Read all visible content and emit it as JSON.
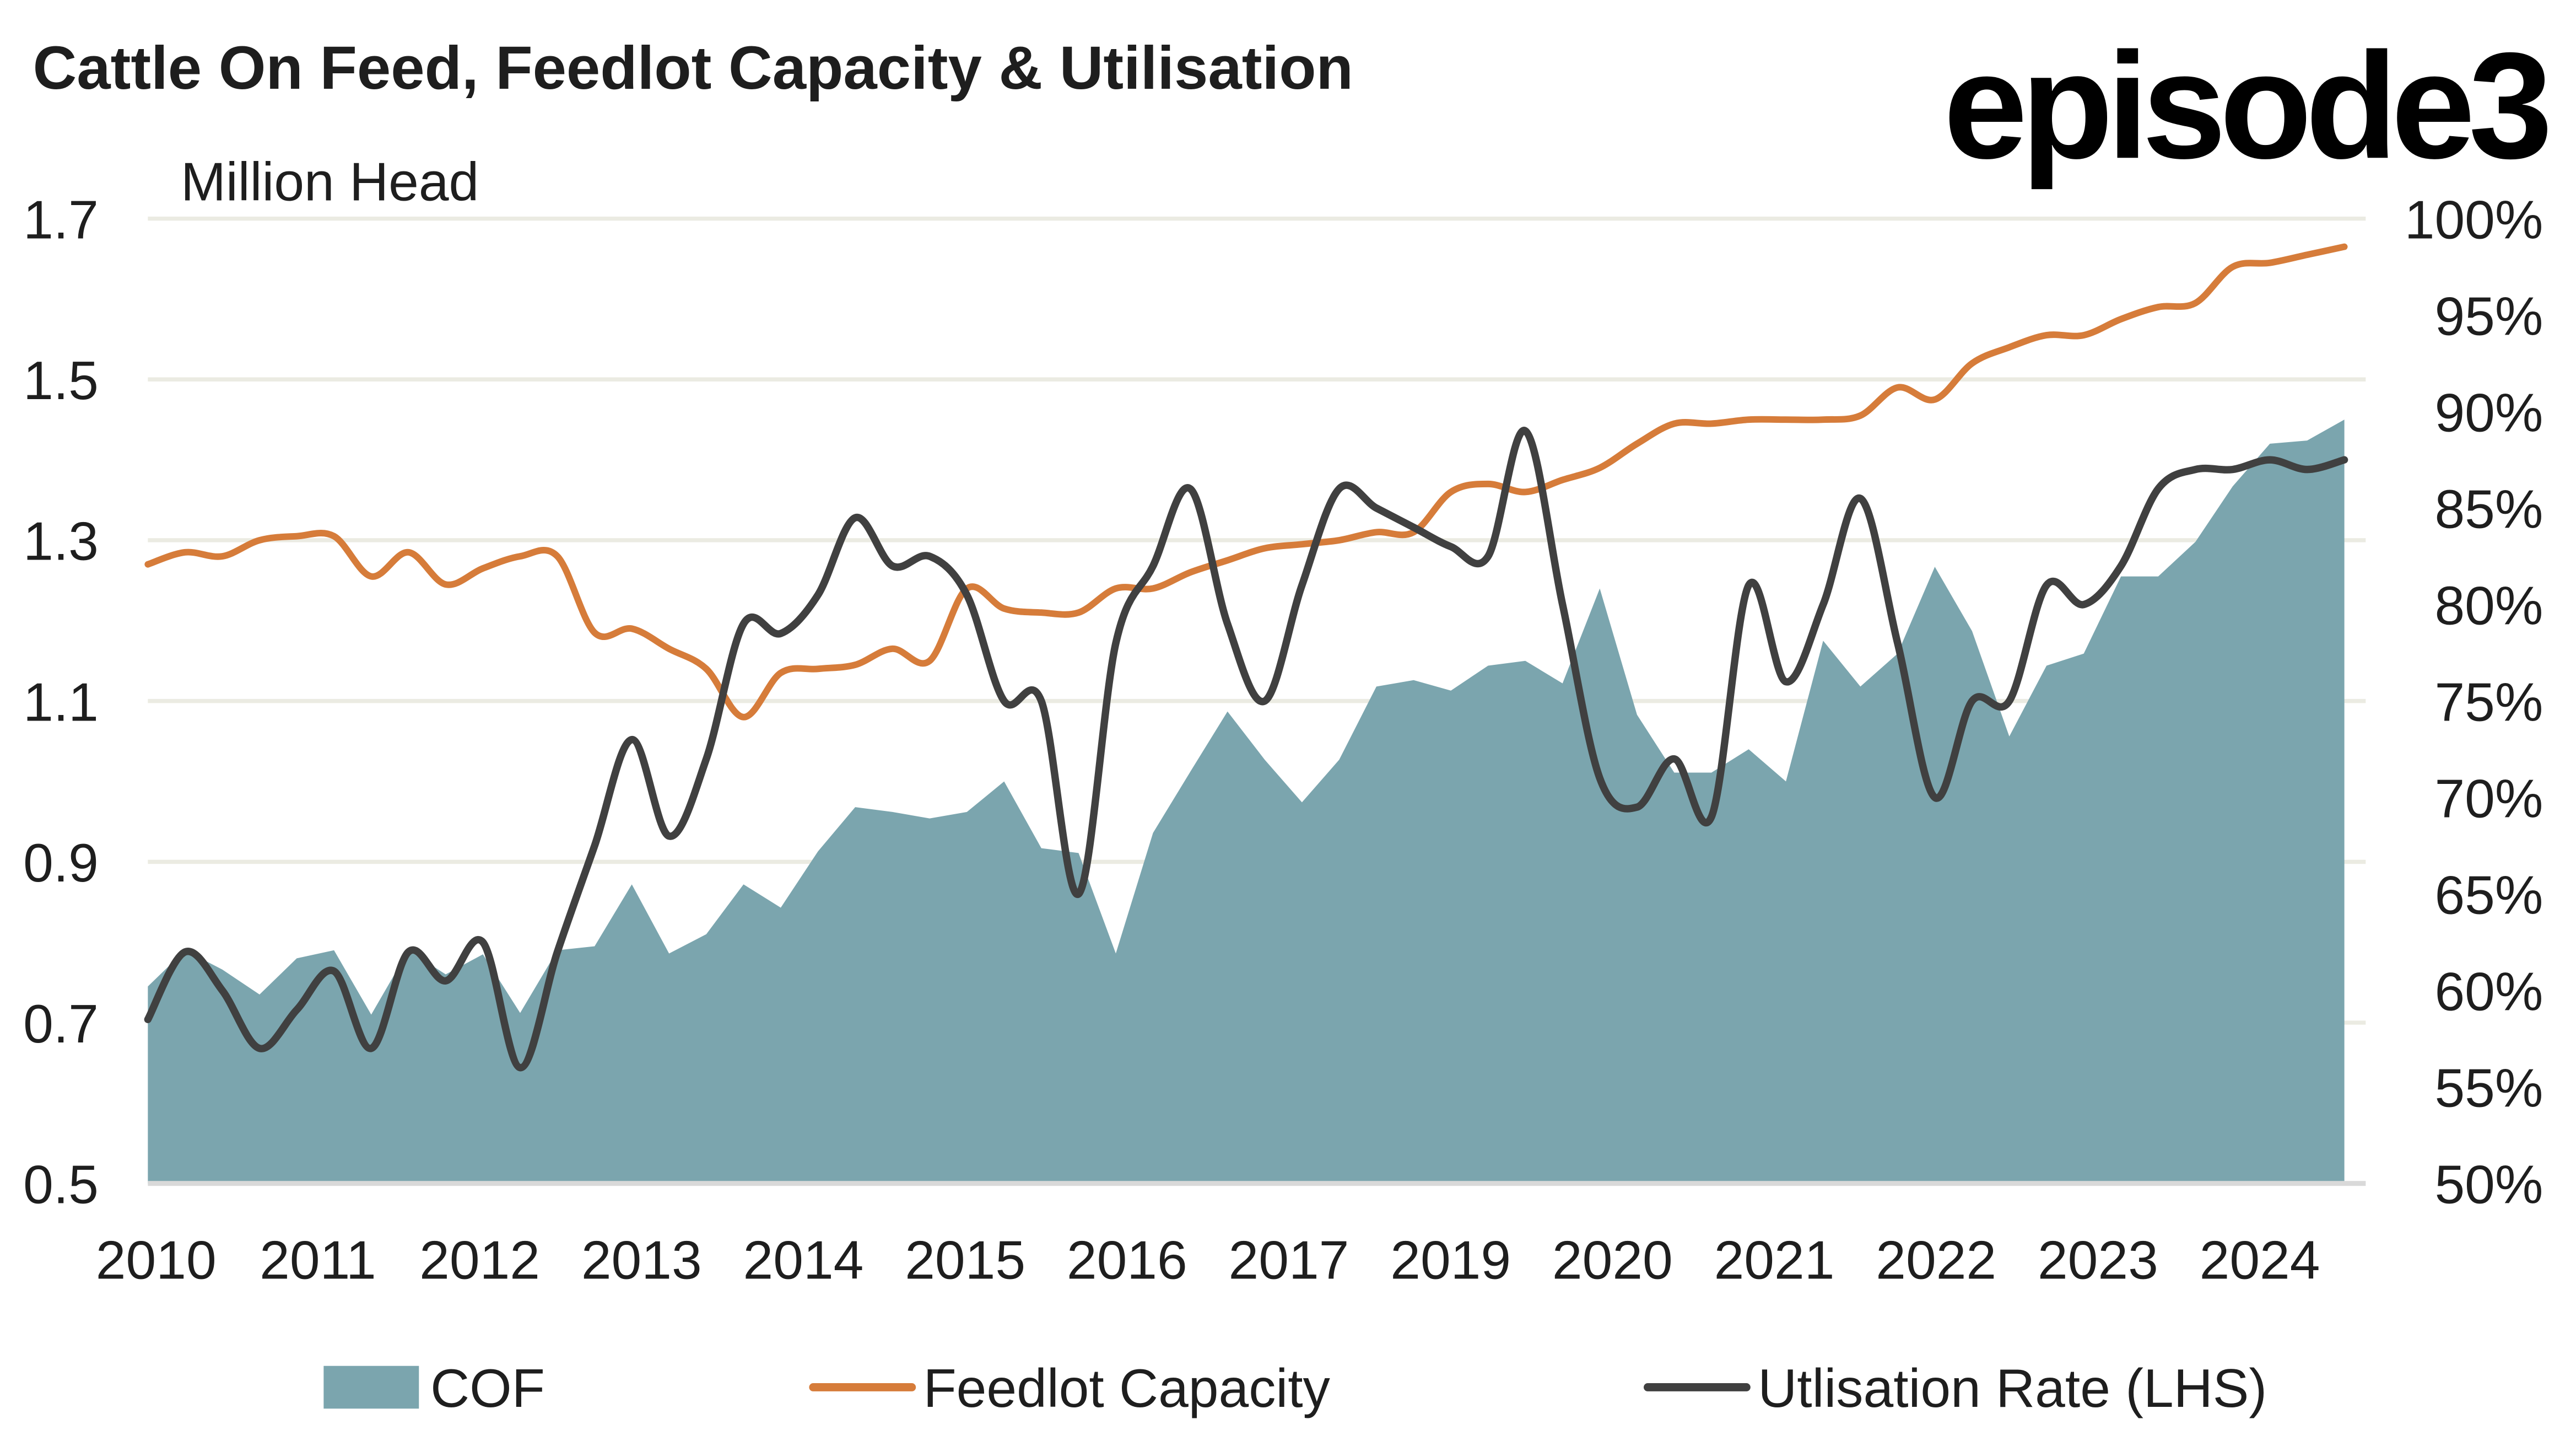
{
  "header": {
    "title": "Cattle On Feed, Feedlot Capacity & Utilisation",
    "logo": "episode3"
  },
  "chart_data": {
    "type": "area+line",
    "title": "Cattle On Feed, Feedlot Capacity & Utilisation",
    "ylabel": "Million Head",
    "ylim": [
      0.5,
      1.7
    ],
    "y_ticks": [
      "1.7",
      "1.5",
      "1.3",
      "1.1",
      "0.9",
      "0.7",
      "0.5"
    ],
    "y2lim": [
      50,
      100
    ],
    "y2_ticks": [
      "100%",
      "95%",
      "90%",
      "85%",
      "80%",
      "75%",
      "70%",
      "65%",
      "60%",
      "55%",
      "50%"
    ],
    "x_tick_labels": [
      "2010",
      "2011",
      "2012",
      "2013",
      "2014",
      "2015",
      "2016",
      "2017",
      "2019",
      "2020",
      "2021",
      "2022",
      "2023",
      "2024"
    ],
    "grid": true,
    "legend_position": "bottom",
    "colors": {
      "cof": "#7ba5ae",
      "capacity": "#d67c3a",
      "utilisation": "#404040",
      "grid": "#ebebe2"
    },
    "series": [
      {
        "name": "COF",
        "type": "area",
        "axis": "left",
        "values": [
          0.745,
          0.79,
          0.766,
          0.735,
          0.78,
          0.79,
          0.71,
          0.79,
          0.76,
          0.785,
          0.712,
          0.79,
          0.795,
          0.872,
          0.786,
          0.81,
          0.872,
          0.843,
          0.913,
          0.968,
          0.962,
          0.954,
          0.962,
          1.0,
          0.917,
          0.911,
          0.786,
          0.936,
          1.012,
          1.087,
          1.027,
          0.974,
          1.027,
          1.118,
          1.126,
          1.113,
          1.144,
          1.15,
          1.122,
          1.24,
          1.083,
          1.011,
          1.011,
          1.04,
          1.0,
          1.175,
          1.118,
          1.159,
          1.267,
          1.187,
          1.056,
          1.144,
          1.159,
          1.255,
          1.255,
          1.298,
          1.367,
          1.42,
          1.424,
          1.45
        ]
      },
      {
        "name": "Feedlot Capacity",
        "type": "line",
        "axis": "left",
        "values": [
          1.27,
          1.285,
          1.28,
          1.3,
          1.305,
          1.305,
          1.255,
          1.285,
          1.245,
          1.265,
          1.28,
          1.28,
          1.185,
          1.19,
          1.165,
          1.14,
          1.08,
          1.135,
          1.14,
          1.145,
          1.165,
          1.15,
          1.24,
          1.215,
          1.21,
          1.21,
          1.24,
          1.24,
          1.26,
          1.275,
          1.29,
          1.295,
          1.3,
          1.31,
          1.31,
          1.36,
          1.37,
          1.36,
          1.375,
          1.39,
          1.42,
          1.445,
          1.445,
          1.45,
          1.45,
          1.45,
          1.455,
          1.49,
          1.475,
          1.52,
          1.54,
          1.555,
          1.555,
          1.575,
          1.59,
          1.595,
          1.64,
          1.645,
          1.655,
          1.665
        ]
      },
      {
        "name": "Utlisation Rate (LHS)",
        "type": "line",
        "axis": "right",
        "values": [
          58.5,
          62,
          60,
          57,
          59,
          61,
          57,
          62,
          60.5,
          62.5,
          56,
          62,
          67.5,
          73,
          68,
          72,
          79,
          78.5,
          80.5,
          84.5,
          82,
          82.5,
          80.5,
          75,
          75,
          65,
          78,
          82,
          86,
          79,
          75,
          81,
          86,
          85,
          84,
          83,
          82.5,
          89,
          80,
          71,
          69.5,
          72,
          69,
          81,
          76,
          80,
          85.5,
          78,
          70,
          75,
          75,
          81,
          80,
          82,
          86,
          87,
          87,
          87.5,
          87,
          87.5
        ]
      }
    ]
  },
  "legend": [
    {
      "label": "COF",
      "kind": "swatch"
    },
    {
      "label": "Feedlot Capacity",
      "kind": "line"
    },
    {
      "label": "Utlisation Rate (LHS)",
      "kind": "line"
    }
  ]
}
